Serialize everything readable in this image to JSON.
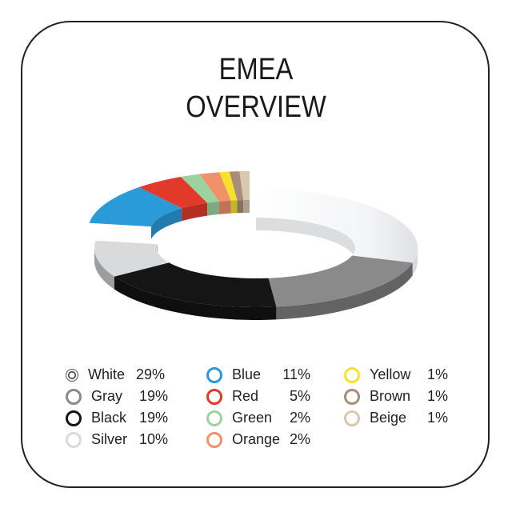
{
  "title_lines": [
    "EMEA",
    "OVERVIEW"
  ],
  "chart_data": {
    "type": "pie",
    "style": "3d-donut",
    "title": "EMEA OVERVIEW",
    "categories": [
      "White",
      "Gray",
      "Black",
      "Silver",
      "Blue",
      "Red",
      "Green",
      "Orange",
      "Yellow",
      "Brown",
      "Beige"
    ],
    "values": [
      29,
      19,
      19,
      10,
      11,
      5,
      2,
      2,
      1,
      1,
      1
    ],
    "value_labels": [
      "29%",
      "19%",
      "19%",
      "10%",
      "11%",
      "5%",
      "2%",
      "2%",
      "1%",
      "1%",
      "1%"
    ],
    "exploded": [
      "Blue",
      "Red",
      "Green",
      "Orange",
      "Yellow",
      "Brown",
      "Beige"
    ],
    "colors": {
      "White": "#f4f5f7",
      "Gray": "#8a8a8a",
      "Black": "#151515",
      "Silver": "#d9dadc",
      "Blue": "#2a9ad8",
      "Red": "#e23a2a",
      "Green": "#9bd3a0",
      "Orange": "#f0916a",
      "Yellow": "#f6e22a",
      "Brown": "#a88e78",
      "Beige": "#d8c8b0"
    },
    "legend_placement": "bottom"
  }
}
